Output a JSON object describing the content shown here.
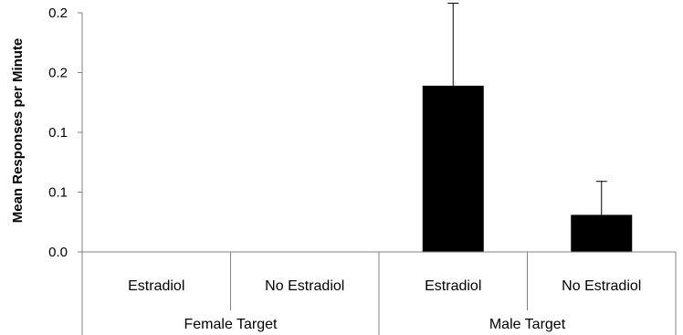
{
  "chart_data": {
    "type": "bar",
    "title": "",
    "ylabel": "Mean Responses per Minute",
    "xlabel": "",
    "ylim": [
      0,
      0.2
    ],
    "yticks": [
      {
        "value": 0.0,
        "label": "0.0"
      },
      {
        "value": 0.05,
        "label": "0.1"
      },
      {
        "value": 0.1,
        "label": "0.1"
      },
      {
        "value": 0.15,
        "label": "0.2"
      },
      {
        "value": 0.2,
        "label": "0.2"
      }
    ],
    "categories": [
      "Estradiol",
      "No Estradiol",
      "Estradiol",
      "No Estradiol"
    ],
    "groups": [
      {
        "label": "Female Target",
        "span": [
          0,
          1
        ]
      },
      {
        "label": "Male Target",
        "span": [
          2,
          3
        ]
      }
    ],
    "values": [
      0,
      0,
      0.139,
      0.031
    ],
    "error_upper": [
      0,
      0,
      0.069,
      0.028
    ],
    "bar_color": "#000000",
    "grid": false,
    "legend": "none"
  }
}
